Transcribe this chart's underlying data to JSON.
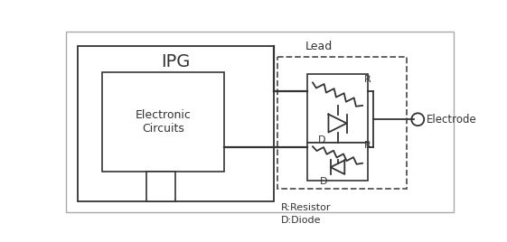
{
  "line_color": "#333333",
  "ipg_label": "IPG",
  "ec_label": "Electronic\nCircuits",
  "lead_label": "Lead",
  "electrode_label": "Electrode",
  "r_label": "R",
  "d_label": "D",
  "legend_text": "R:Resistor\nD:Diode"
}
